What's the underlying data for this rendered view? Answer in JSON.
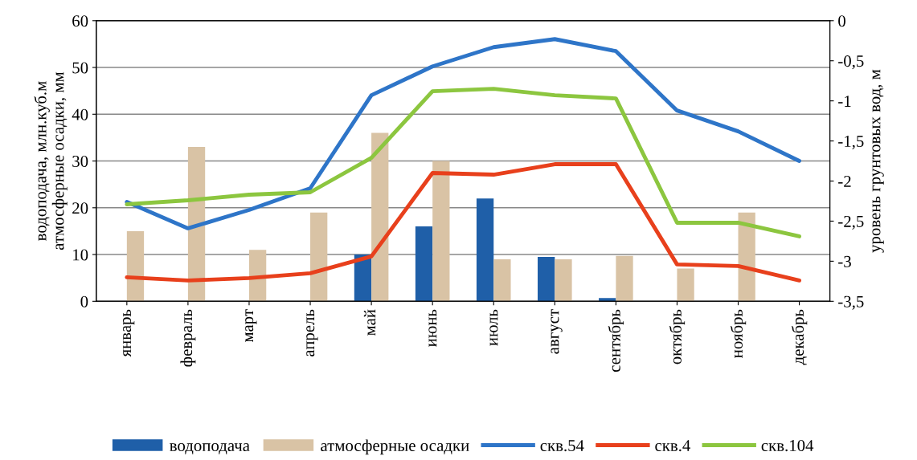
{
  "chart_data": {
    "type": "bar",
    "categories": [
      "январь",
      "февраль",
      "март",
      "апрель",
      "май",
      "июнь",
      "июль",
      "август",
      "сентябрь",
      "октябрь",
      "ноябрь",
      "декабрь"
    ],
    "ylabel": "водоподача, млн.куб.м\nатмосферные осадки, мм",
    "y2label": "уровень грунтовых вод, м",
    "ylim": [
      0,
      60
    ],
    "yticks": [
      0,
      10,
      20,
      30,
      40,
      50,
      60
    ],
    "y2lim": [
      -3.5,
      0
    ],
    "y2ticks": [
      {
        "value": -3.5,
        "label": "-3,5"
      },
      {
        "value": -3,
        "label": "-3"
      },
      {
        "value": -2.5,
        "label": "-2,5"
      },
      {
        "value": -2,
        "label": "-2"
      },
      {
        "value": -1.5,
        "label": "-1,5"
      },
      {
        "value": -1,
        "label": "-1"
      },
      {
        "value": -0.5,
        "label": "-0,5"
      },
      {
        "value": 0,
        "label": "0"
      }
    ],
    "grid": "y",
    "legend": "bottom",
    "series": [
      {
        "name": "водоподача",
        "color": "#1f5fa8",
        "values": [
          null,
          null,
          null,
          null,
          10,
          16,
          22,
          9.5,
          0.7,
          null,
          null,
          null
        ]
      },
      {
        "name": "атмосферные осадки",
        "color": "#d9c3a5",
        "values": [
          15,
          33,
          11,
          19,
          36,
          30,
          9,
          9,
          9.7,
          7,
          19,
          null
        ]
      },
      {
        "name": "скв.54",
        "type": "line",
        "axis": "y2",
        "color": "#2e75c8",
        "values": [
          -2.26,
          -2.59,
          -2.36,
          -2.09,
          -0.93,
          -0.57,
          -0.33,
          -0.23,
          -0.38,
          -1.12,
          -1.38,
          -1.75
        ]
      },
      {
        "name": "скв.4",
        "type": "line",
        "axis": "y2",
        "color": "#e8401c",
        "values": [
          -3.2,
          -3.24,
          -3.21,
          -3.15,
          -2.94,
          -1.9,
          -1.92,
          -1.79,
          -1.79,
          -3.04,
          -3.06,
          -3.24
        ]
      },
      {
        "name": "скв.104",
        "type": "line",
        "axis": "y2",
        "color": "#8cc63f",
        "values": [
          -2.29,
          -2.24,
          -2.17,
          -2.14,
          -1.71,
          -0.88,
          -0.85,
          -0.93,
          -0.97,
          -2.52,
          -2.52,
          -2.69
        ]
      }
    ]
  }
}
